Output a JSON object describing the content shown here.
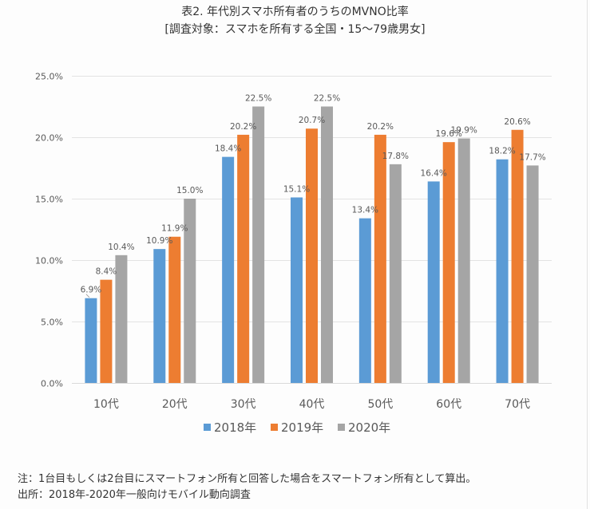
{
  "titles": {
    "line1": "表2. 年代別スマホ所有者のうちのMVNO比率",
    "line2": "[調査対象：スマホを所有する全国・15～79歳男女]"
  },
  "notes": {
    "note": "注：1台目もしくは2台目にスマートフォン所有と回答した場合をスマートフォン所有として算出。",
    "source": "出所：2018年-2020年一般向けモバイル動向調査"
  },
  "chart_data": {
    "type": "bar",
    "title": "表2. 年代別スマホ所有者のうちのMVNO比率",
    "subtitle": "[調査対象：スマホを所有する全国・15～79歳男女]",
    "xlabel": "",
    "ylabel": "",
    "ylim": [
      0,
      25
    ],
    "yticks": [
      0,
      5,
      10,
      15,
      20,
      25
    ],
    "ytick_labels": [
      "0.0%",
      "5.0%",
      "10.0%",
      "15.0%",
      "20.0%",
      "25.0%"
    ],
    "grid": true,
    "legend_position": "bottom",
    "categories": [
      "10代",
      "20代",
      "30代",
      "40代",
      "50代",
      "60代",
      "70代"
    ],
    "series": [
      {
        "name": "2018年",
        "color": "#5B9BD5",
        "values": [
          6.9,
          10.9,
          18.4,
          15.1,
          13.4,
          16.4,
          18.2
        ]
      },
      {
        "name": "2019年",
        "color": "#ED7D31",
        "values": [
          8.4,
          11.9,
          20.2,
          20.7,
          20.2,
          19.6,
          20.6
        ]
      },
      {
        "name": "2020年",
        "color": "#A5A5A5",
        "values": [
          10.4,
          15.0,
          22.5,
          22.5,
          17.8,
          19.9,
          17.7
        ]
      }
    ],
    "value_format": "%.1f%"
  }
}
